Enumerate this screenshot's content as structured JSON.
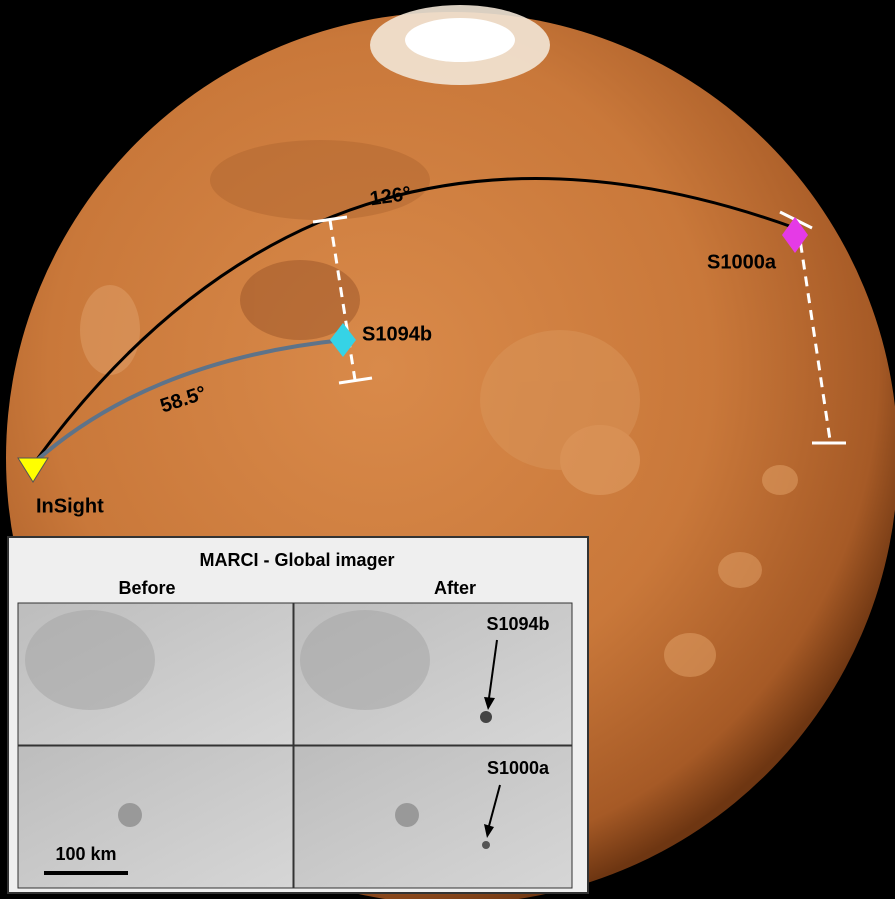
{
  "labels": {
    "arc_long": "126°",
    "arc_short": "58.5°",
    "event_a": "S1000a",
    "event_b": "S1094b",
    "lander": "InSight"
  },
  "inset": {
    "title": "MARCI - Global imager",
    "columns": [
      "Before",
      "After"
    ],
    "panel_labels": [
      "S1094b",
      "S1000a"
    ],
    "scale_bar": "100 km"
  }
}
